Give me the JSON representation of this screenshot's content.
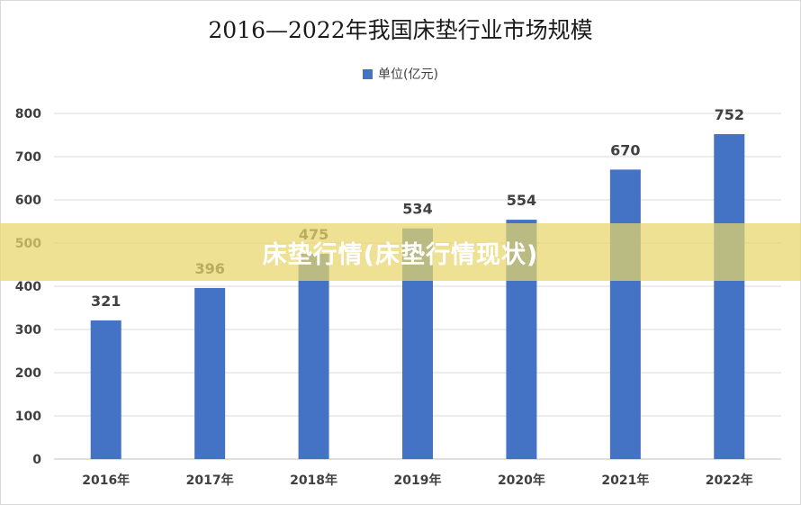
{
  "chart_data": {
    "type": "bar",
    "title": "2016—2022年我国床垫行业市场规模",
    "categories": [
      "2016年",
      "2017年",
      "2018年",
      "2019年",
      "2020年",
      "2021年",
      "2022年"
    ],
    "series": [
      {
        "name": "单位(亿元)",
        "values": [
          321,
          396,
          475,
          534,
          554,
          670,
          752
        ]
      }
    ],
    "ylim": [
      0,
      800
    ],
    "yticks": [
      0,
      100,
      200,
      300,
      400,
      500,
      600,
      700,
      800
    ],
    "grid": true,
    "legend": "top-center",
    "bar_color": "#4472c4"
  },
  "banner": {
    "text": "床垫行情(床垫行情现状)",
    "color": "#e8d66a"
  }
}
